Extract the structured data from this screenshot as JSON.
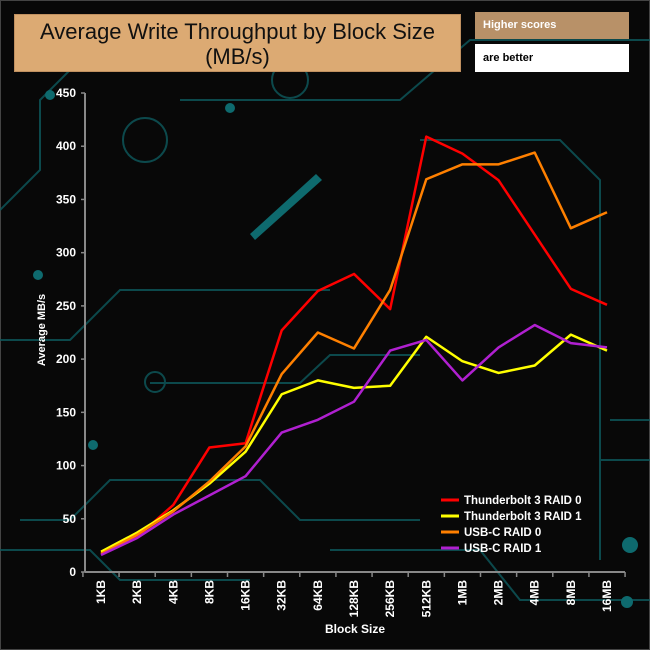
{
  "header": {
    "title_line1": "Average Write Throughput by Block Size",
    "title_line2": "(MB/s)",
    "note_line1": "Higher scores",
    "note_line2": "are better"
  },
  "chart_data": {
    "type": "line",
    "title": "Average Write Throughput by Block Size (MB/s)",
    "xlabel": "Block Size",
    "ylabel": "Average MB/s",
    "ylim": [
      0,
      450
    ],
    "yticks": [
      0,
      50,
      100,
      150,
      200,
      250,
      300,
      350,
      400,
      450
    ],
    "categories": [
      "1KB",
      "2KB",
      "4KB",
      "8KB",
      "16KB",
      "32KB",
      "64KB",
      "128KB",
      "256KB",
      "512KB",
      "1MB",
      "2MB",
      "4MB",
      "8MB",
      "16MB"
    ],
    "legend_position": "bottom-right",
    "grid": false,
    "series": [
      {
        "name": "Thunderbolt 3 RAID 0",
        "color": "#ff0000",
        "values": [
          19,
          33,
          63,
          117,
          121,
          227,
          264,
          280,
          247,
          409,
          393,
          368,
          317,
          266,
          251
        ]
      },
      {
        "name": "Thunderbolt 3 RAID 1",
        "color": "#ffff00",
        "values": [
          19,
          37,
          58,
          83,
          113,
          167,
          180,
          173,
          175,
          221,
          198,
          187,
          194,
          223,
          208
        ]
      },
      {
        "name": "USB-C RAID 0",
        "color": "#ff8000",
        "values": [
          17,
          35,
          57,
          85,
          118,
          186,
          225,
          210,
          265,
          369,
          383,
          383,
          394,
          323,
          338
        ]
      },
      {
        "name": "USB-C RAID 1",
        "color": "#b020d0",
        "values": [
          16,
          32,
          54,
          72,
          90,
          131,
          143,
          160,
          208,
          218,
          180,
          211,
          232,
          215,
          211
        ]
      }
    ]
  }
}
